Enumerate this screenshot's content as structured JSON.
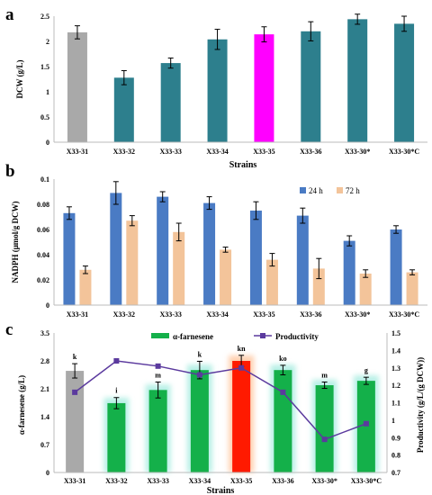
{
  "colors": {
    "teal": "#2d7f8d",
    "gray": "#a9a9a9",
    "magenta": "#ff00ff",
    "blue": "#4a7bc4",
    "peach": "#f3c49a",
    "green": "#14b04a",
    "green_glow": "#b8f0e6",
    "red": "#ff1a00",
    "red_glow": "#ffd0b0",
    "purple": "#5b3a9e",
    "axis": "#bbbbbb"
  },
  "chart_data": [
    {
      "panel": "a",
      "type": "bar",
      "categories": [
        "X33-31",
        "X33-32",
        "X33-33",
        "X33-34",
        "X33-35",
        "X33-36",
        "X33-30*",
        "X33-30*C"
      ],
      "values": [
        2.18,
        1.28,
        1.57,
        2.04,
        2.14,
        2.2,
        2.44,
        2.35
      ],
      "errors": [
        0.13,
        0.14,
        0.1,
        0.2,
        0.15,
        0.19,
        0.1,
        0.15
      ],
      "bar_colors": [
        "gray",
        "teal",
        "teal",
        "teal",
        "magenta",
        "teal",
        "teal",
        "teal"
      ],
      "xlabel": "Strains",
      "ylabel": "DCW (g/L)",
      "ylim": [
        0,
        2.5
      ],
      "yticks": [
        "0",
        "0.5",
        "1",
        "1.5",
        "2",
        "2.5"
      ],
      "grid": false
    },
    {
      "panel": "b",
      "type": "bar",
      "categories": [
        "X33-31",
        "X33-32",
        "X33-33",
        "X33-34",
        "X33-35",
        "X33-36",
        "X33-30*",
        "X33-30*C"
      ],
      "series": [
        {
          "name": "24 h",
          "values": [
            0.073,
            0.089,
            0.086,
            0.081,
            0.075,
            0.071,
            0.051,
            0.06
          ],
          "errors": [
            0.005,
            0.009,
            0.004,
            0.005,
            0.007,
            0.006,
            0.004,
            0.003
          ],
          "color": "blue"
        },
        {
          "name": "72 h",
          "values": [
            0.028,
            0.067,
            0.058,
            0.044,
            0.036,
            0.029,
            0.025,
            0.026
          ],
          "errors": [
            0.003,
            0.004,
            0.007,
            0.002,
            0.005,
            0.008,
            0.003,
            0.002
          ],
          "color": "peach"
        }
      ],
      "xlabel": "Strains",
      "ylabel": "NADPH (μmol/g DCW)",
      "ylim": [
        0,
        0.1
      ],
      "yticks": [
        "0",
        "0.02",
        "0.04",
        "0.06",
        "0.08",
        "0.1"
      ],
      "legend": "top-right",
      "grid": false
    },
    {
      "panel": "c",
      "type": "bar",
      "categories": [
        "X33-31",
        "X33-32",
        "X33-33",
        "X33-34",
        "X33-35",
        "X33-36",
        "X33-30*",
        "X33-30*C"
      ],
      "values": [
        2.55,
        1.74,
        2.07,
        2.57,
        2.8,
        2.57,
        2.19,
        2.3
      ],
      "errors": [
        0.18,
        0.14,
        0.2,
        0.22,
        0.14,
        0.12,
        0.08,
        0.09
      ],
      "bar_colors": [
        "gray",
        "green",
        "green",
        "green",
        "red",
        "green",
        "green",
        "green"
      ],
      "bar_letters": [
        "k",
        "i",
        "m",
        "k",
        "kn",
        "ko",
        "m",
        "g"
      ],
      "line": {
        "name": "Productivity",
        "values": [
          1.16,
          1.34,
          1.31,
          1.26,
          1.3,
          1.16,
          0.89,
          0.98
        ]
      },
      "bar_series_name": "α-farnesene",
      "xlabel": "Strains",
      "ylabel": "α-farnesene (g/L)",
      "ylabel_right": "Productivity (g/L/(g DCW))",
      "ylim": [
        0,
        3.5
      ],
      "yticks": [
        "0",
        "0.7",
        "1.4",
        "2.1",
        "2.8",
        "3.5"
      ],
      "ylim_right": [
        0.7,
        1.5
      ],
      "yticks_right": [
        "0.7",
        "0.8",
        "0.9",
        "1",
        "1.1",
        "1.2",
        "1.3",
        "1.4",
        "1.5"
      ],
      "legend": "top",
      "grid": false
    }
  ],
  "panel_labels": {
    "a": "a",
    "b": "b",
    "c": "c"
  }
}
